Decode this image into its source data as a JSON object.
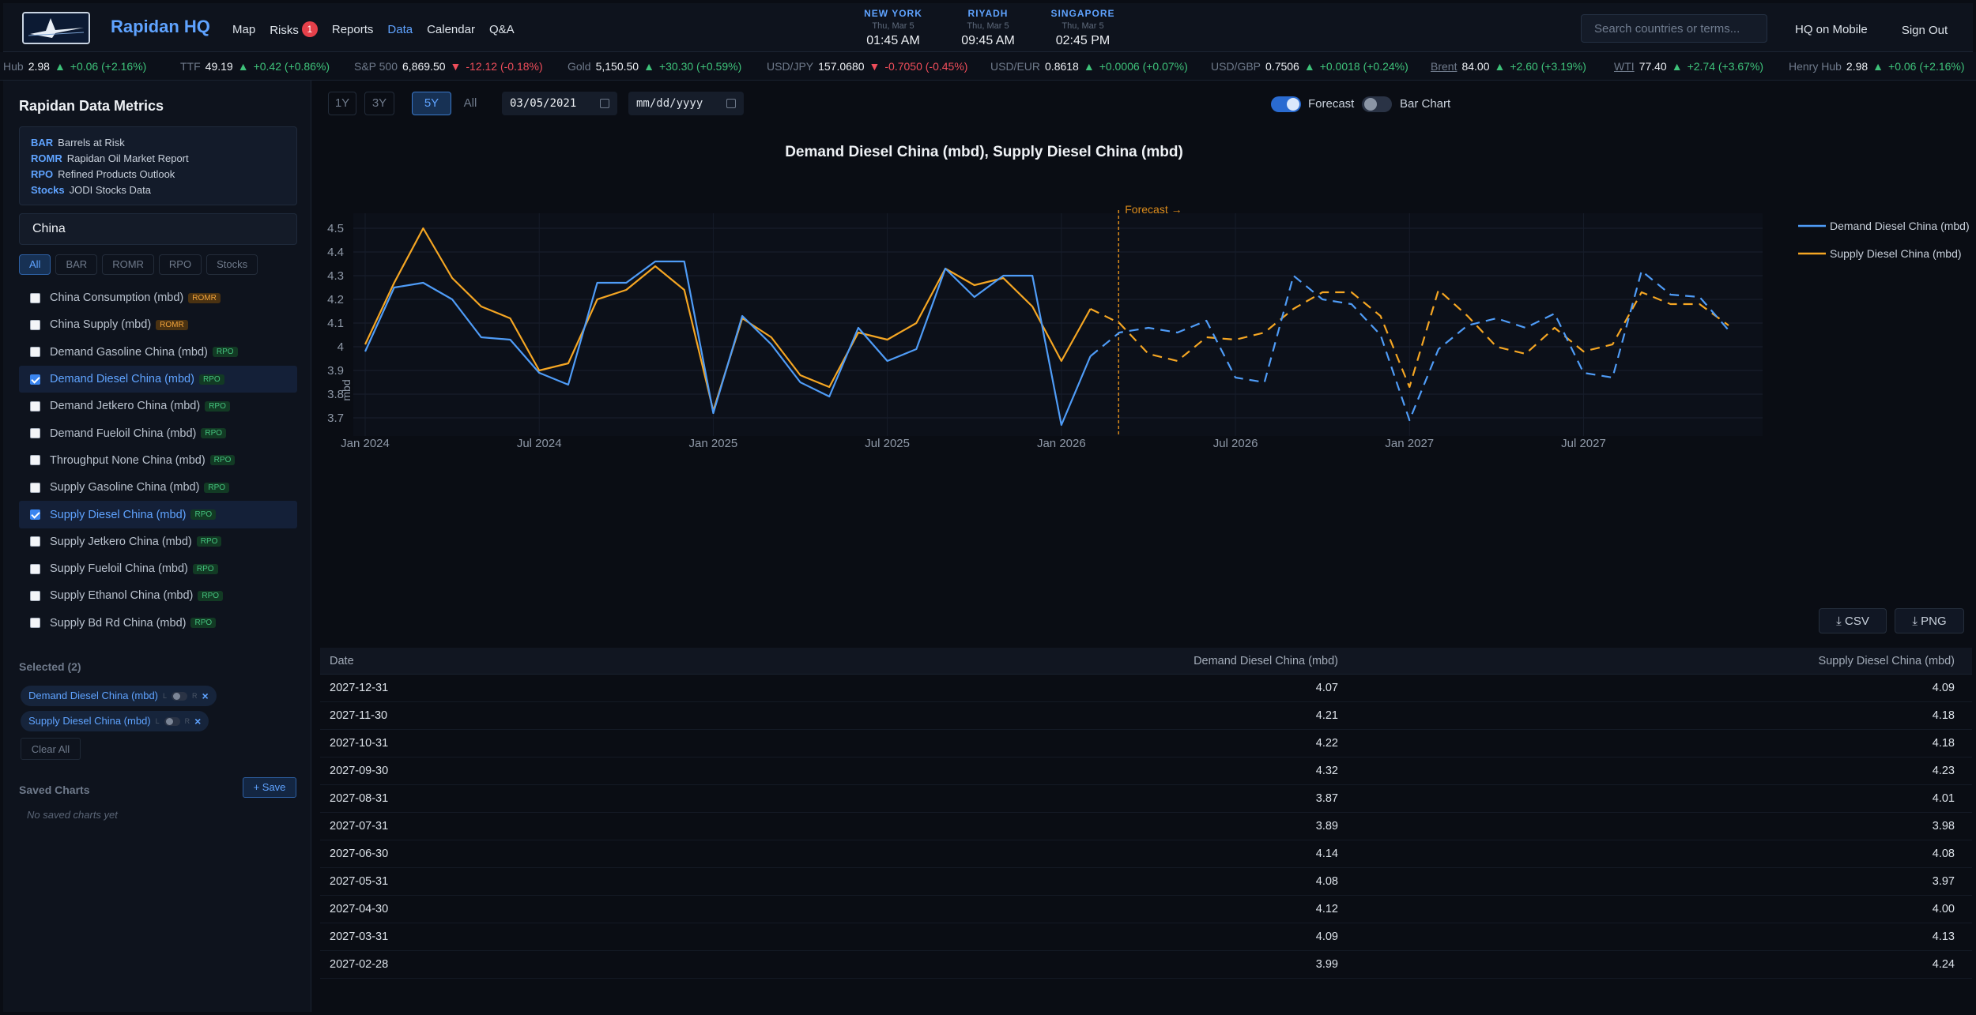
{
  "header": {
    "brand": "Rapidan HQ",
    "nav": [
      {
        "label": "Map"
      },
      {
        "label": "Risks",
        "badge": "1"
      },
      {
        "label": "Reports"
      },
      {
        "label": "Data",
        "active": true
      },
      {
        "label": "Calendar"
      },
      {
        "label": "Q&A"
      }
    ],
    "clocks": [
      {
        "city": "NEW YORK",
        "date": "Thu, Mar 5",
        "time": "01:45 AM"
      },
      {
        "city": "RIYADH",
        "date": "Thu, Mar 5",
        "time": "09:45 AM"
      },
      {
        "city": "SINGAPORE",
        "date": "Thu, Mar 5",
        "time": "02:45 PM"
      }
    ],
    "search_placeholder": "Search countries or terms...",
    "mobile": "HQ on Mobile",
    "signout": "Sign Out"
  },
  "ticker": [
    {
      "name": "Hub",
      "price": "2.98",
      "dir": "up",
      "change": "+0.06 (+2.16%)"
    },
    {
      "name": "TTF",
      "price": "49.19",
      "dir": "up",
      "change": "+0.42 (+0.86%)"
    },
    {
      "name": "S&P 500",
      "price": "6,869.50",
      "dir": "down",
      "change": "-12.12 (-0.18%)"
    },
    {
      "name": "Gold",
      "price": "5,150.50",
      "dir": "up",
      "change": "+30.30 (+0.59%)"
    },
    {
      "name": "USD/JPY",
      "price": "157.0680",
      "dir": "down",
      "change": "-0.7050 (-0.45%)"
    },
    {
      "name": "USD/EUR",
      "price": "0.8618",
      "dir": "up",
      "change": "+0.0006 (+0.07%)"
    },
    {
      "name": "USD/GBP",
      "price": "0.7506",
      "dir": "up",
      "change": "+0.0018 (+0.24%)"
    },
    {
      "name": "Brent",
      "price": "84.00",
      "dir": "up",
      "change": "+2.60 (+3.19%)",
      "underline": true
    },
    {
      "name": "WTI",
      "price": "77.40",
      "dir": "up",
      "change": "+2.74 (+3.67%)",
      "underline": true
    },
    {
      "name": "Henry Hub",
      "price": "2.98",
      "dir": "up",
      "change": "+0.06 (+2.16%)"
    }
  ],
  "sidebar": {
    "title": "Rapidan Data Metrics",
    "legend": [
      {
        "abbr": "BAR",
        "text": "Barrels at Risk"
      },
      {
        "abbr": "ROMR",
        "text": "Rapidan Oil Market Report"
      },
      {
        "abbr": "RPO",
        "text": "Refined Products Outlook"
      },
      {
        "abbr": "Stocks",
        "text": "JODI Stocks Data"
      }
    ],
    "filter_value": "China",
    "filters": [
      "All",
      "BAR",
      "ROMR",
      "RPO",
      "Stocks"
    ],
    "metrics": [
      {
        "label": "China Consumption (mbd)",
        "tag": "ROMR",
        "checked": false
      },
      {
        "label": "China Supply (mbd)",
        "tag": "ROMR",
        "checked": false
      },
      {
        "label": "Demand Gasoline China (mbd)",
        "tag": "RPO",
        "checked": false
      },
      {
        "label": "Demand Diesel China (mbd)",
        "tag": "RPO",
        "checked": true
      },
      {
        "label": "Demand Jetkero China (mbd)",
        "tag": "RPO",
        "checked": false
      },
      {
        "label": "Demand Fueloil China (mbd)",
        "tag": "RPO",
        "checked": false
      },
      {
        "label": "Throughput None China (mbd)",
        "tag": "RPO",
        "checked": false
      },
      {
        "label": "Supply Gasoline China (mbd)",
        "tag": "RPO",
        "checked": false
      },
      {
        "label": "Supply Diesel China (mbd)",
        "tag": "RPO",
        "checked": true
      },
      {
        "label": "Supply Jetkero China (mbd)",
        "tag": "RPO",
        "checked": false
      },
      {
        "label": "Supply Fueloil China (mbd)",
        "tag": "RPO",
        "checked": false
      },
      {
        "label": "Supply Ethanol China (mbd)",
        "tag": "RPO",
        "checked": false
      },
      {
        "label": "Supply Bd Rd China (mbd)",
        "tag": "RPO",
        "checked": false
      }
    ],
    "selected_title": "Selected (2)",
    "selected": [
      "Demand Diesel China (mbd)",
      "Supply Diesel China (mbd)"
    ],
    "axis_left": "L",
    "axis_right": "R",
    "clear_all": "Clear All",
    "saved_title": "Saved Charts",
    "save_button": "+ Save",
    "no_saved": "No saved charts yet"
  },
  "controls": {
    "ranges": [
      "1Y",
      "3Y",
      "5Y",
      "All"
    ],
    "active_range": "5Y",
    "start_date": "03/05/2021",
    "end_date_placeholder": "mm/dd/yyyy",
    "forecast_label": "Forecast",
    "forecast_on": true,
    "bar_label": "Bar Chart",
    "bar_on": false
  },
  "colors": {
    "demand": "#4f9cf7",
    "supply": "#f5a623",
    "forecast_line": "#d98a1c"
  },
  "chart_data": {
    "type": "line",
    "title": "Demand Diesel China (mbd), Supply Diesel China (mbd)",
    "ylabel": "mbd",
    "ylim": [
      3.62,
      4.56
    ],
    "yticks": [
      3.7,
      3.8,
      3.9,
      4,
      4.1,
      4.2,
      4.3,
      4.4,
      4.5
    ],
    "xtick_labels": [
      "Jan 2024",
      "Jul 2024",
      "Jan 2025",
      "Jul 2025",
      "Jan 2026",
      "Jul 2026",
      "Jan 2027",
      "Jul 2027"
    ],
    "forecast_label": "Forecast →",
    "forecast_start": "2026-03",
    "x": [
      "2024-01",
      "2024-02",
      "2024-03",
      "2024-04",
      "2024-05",
      "2024-06",
      "2024-07",
      "2024-08",
      "2024-09",
      "2024-10",
      "2024-11",
      "2024-12",
      "2025-01",
      "2025-02",
      "2025-03",
      "2025-04",
      "2025-05",
      "2025-06",
      "2025-07",
      "2025-08",
      "2025-09",
      "2025-10",
      "2025-11",
      "2025-12",
      "2026-01",
      "2026-02",
      "2026-03",
      "2026-04",
      "2026-05",
      "2026-06",
      "2026-07",
      "2026-08",
      "2026-09",
      "2026-10",
      "2026-11",
      "2026-12",
      "2027-01",
      "2027-02",
      "2027-03",
      "2027-04",
      "2027-05",
      "2027-06",
      "2027-07",
      "2027-08",
      "2027-09",
      "2027-10",
      "2027-11",
      "2027-12"
    ],
    "series": [
      {
        "name": "Demand Diesel China (mbd)",
        "values": [
          3.98,
          4.25,
          4.27,
          4.2,
          4.04,
          4.03,
          3.89,
          3.84,
          4.27,
          4.27,
          4.36,
          4.36,
          3.72,
          4.13,
          4.01,
          3.85,
          3.79,
          4.08,
          3.94,
          3.99,
          4.33,
          4.21,
          4.3,
          4.3,
          3.67,
          3.96,
          4.06,
          4.08,
          4.06,
          4.11,
          3.87,
          3.85,
          4.3,
          4.2,
          4.18,
          4.05,
          3.69,
          3.99,
          4.09,
          4.12,
          4.08,
          4.14,
          3.89,
          3.87,
          4.32,
          4.22,
          4.21,
          4.07
        ]
      },
      {
        "name": "Supply Diesel China (mbd)",
        "values": [
          4.01,
          4.27,
          4.5,
          4.29,
          4.17,
          4.12,
          3.9,
          3.93,
          4.2,
          4.24,
          4.34,
          4.24,
          3.73,
          4.12,
          4.04,
          3.88,
          3.83,
          4.06,
          4.03,
          4.1,
          4.33,
          4.26,
          4.29,
          4.17,
          3.94,
          4.16,
          4.1,
          3.97,
          3.94,
          4.04,
          4.03,
          4.06,
          4.16,
          4.23,
          4.23,
          4.13,
          3.83,
          4.24,
          4.13,
          4.0,
          3.97,
          4.08,
          3.98,
          4.01,
          4.23,
          4.18,
          4.18,
          4.09
        ]
      }
    ]
  },
  "buttons": {
    "csv": "CSV",
    "png": "PNG"
  },
  "table": {
    "headers": [
      "Date",
      "Demand Diesel China (mbd)",
      "Supply Diesel China (mbd)"
    ],
    "rows": [
      [
        "2027-12-31",
        "4.07",
        "4.09"
      ],
      [
        "2027-11-30",
        "4.21",
        "4.18"
      ],
      [
        "2027-10-31",
        "4.22",
        "4.18"
      ],
      [
        "2027-09-30",
        "4.32",
        "4.23"
      ],
      [
        "2027-08-31",
        "3.87",
        "4.01"
      ],
      [
        "2027-07-31",
        "3.89",
        "3.98"
      ],
      [
        "2027-06-30",
        "4.14",
        "4.08"
      ],
      [
        "2027-05-31",
        "4.08",
        "3.97"
      ],
      [
        "2027-04-30",
        "4.12",
        "4.00"
      ],
      [
        "2027-03-31",
        "4.09",
        "4.13"
      ],
      [
        "2027-02-28",
        "3.99",
        "4.24"
      ]
    ]
  }
}
